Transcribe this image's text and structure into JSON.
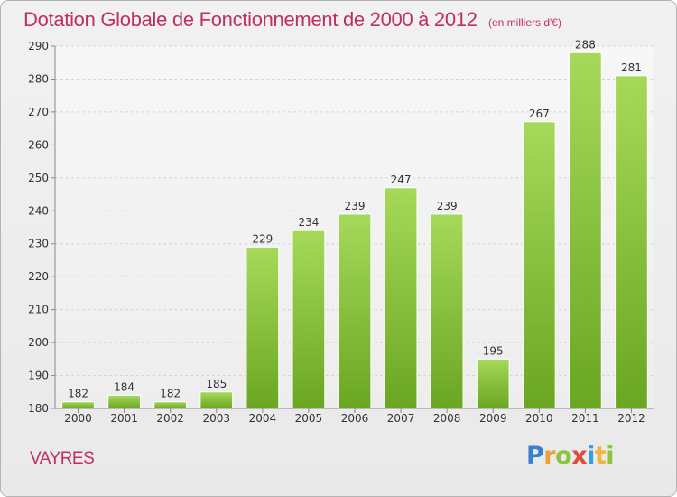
{
  "chart_data": {
    "type": "bar",
    "title": "Dotation Globale de Fonctionnement de 2000 à 2012",
    "unit_note": "(en milliers d'€)",
    "categories": [
      "2000",
      "2001",
      "2002",
      "2003",
      "2004",
      "2005",
      "2006",
      "2007",
      "2008",
      "2009",
      "2010",
      "2011",
      "2012"
    ],
    "values": [
      182,
      184,
      182,
      185,
      229,
      234,
      239,
      247,
      239,
      195,
      267,
      288,
      281
    ],
    "ylim": [
      180,
      290
    ],
    "yticks": [
      180,
      190,
      200,
      210,
      220,
      230,
      240,
      250,
      260,
      270,
      280,
      290
    ],
    "grid": true,
    "bar_color": "#7dbf2e",
    "bar_color_light": "#a4d858",
    "title_color": "#c0305a"
  },
  "footer": {
    "commune": "VAYRES",
    "logo": "Proxiti"
  }
}
